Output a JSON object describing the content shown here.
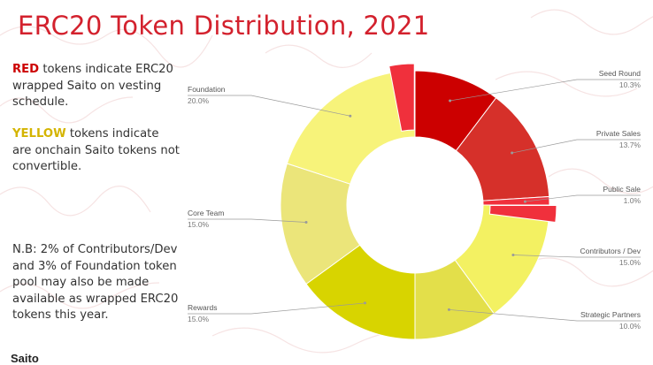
{
  "title": "ERC20 Token Distribution, 2021",
  "notes": {
    "red_keyword": "RED",
    "red_text": " tokens indicate ERC20 wrapped Saito on vesting schedule.",
    "yellow_keyword": "YELLOW",
    "yellow_text": " tokens indicate are onchain Saito tokens not convertible.",
    "nb_text": "N.B: 2% of Contributors/Dev and 3% of Foundation token pool may also be made available as wrapped ERC20 tokens this year."
  },
  "footer": {
    "logo_text": "Saito"
  },
  "chart_data": {
    "type": "pie",
    "title": "ERC20 Token Distribution, 2021",
    "donut": true,
    "slices": [
      {
        "name": "Seed Round",
        "value": 10.3,
        "label": "10.3%",
        "color": "#cc0000"
      },
      {
        "name": "Private Sales",
        "value": 13.7,
        "label": "13.7%",
        "color": "#d6302a"
      },
      {
        "name": "Public Sale",
        "value": 1.0,
        "label": "1.0%",
        "color": "#f0303c"
      },
      {
        "name": "Contributors / Dev",
        "value": 15.0,
        "label": "15.0%",
        "color": "#f3f162"
      },
      {
        "name": "Strategic Partners",
        "value": 10.0,
        "label": "10.0%",
        "color": "#e3df4a"
      },
      {
        "name": "Rewards",
        "value": 15.0,
        "label": "15.0%",
        "color": "#d8d400"
      },
      {
        "name": "Core Team",
        "value": 15.0,
        "label": "15.0%",
        "color": "#ebe57a"
      },
      {
        "name": "Foundation",
        "value": 20.0,
        "label": "20.0%",
        "color": "#f7f37a"
      }
    ],
    "highlight_wedges": [
      {
        "within": "Contributors / Dev",
        "value": 2,
        "color": "#f0303c"
      },
      {
        "within": "Foundation",
        "value": 3,
        "color": "#f0303c"
      }
    ]
  }
}
